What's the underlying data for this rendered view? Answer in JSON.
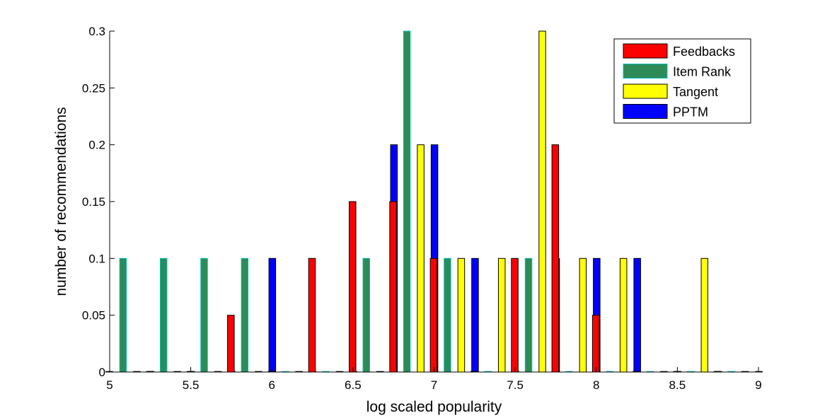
{
  "chart_data": {
    "type": "bar",
    "title": "",
    "xlabel": "log scaled popularity",
    "ylabel": "number of recommendations",
    "xlim": [
      5,
      9
    ],
    "ylim": [
      0,
      0.3
    ],
    "xticks": [
      "5",
      "5.5",
      "6",
      "6.5",
      "7",
      "7.5",
      "8",
      "8.5",
      "9"
    ],
    "yticks": [
      "0",
      "0.05",
      "0.1",
      "0.15",
      "0.2",
      "0.25",
      "0.3"
    ],
    "grid": false,
    "legend_position": "top-right",
    "bin_centers": [
      5.125,
      5.375,
      5.625,
      5.875,
      6.125,
      6.375,
      6.625,
      6.875,
      7.125,
      7.375,
      7.625,
      7.875,
      8.125,
      8.375,
      8.625,
      8.875
    ],
    "series": [
      {
        "name": "Feedbacks",
        "color": "#ff0000",
        "values": [
          0,
          0,
          0,
          0.05,
          0,
          0.1,
          0.15,
          0.15,
          0.1,
          0,
          0.1,
          0.2,
          0.05,
          0,
          0,
          0
        ]
      },
      {
        "name": "Item Rank",
        "color": "#2e8b57",
        "edge": "#00c0c0",
        "values": [
          0.1,
          0.1,
          0.1,
          0.1,
          0,
          0,
          0.1,
          0.3,
          0.1,
          0,
          0.1,
          0,
          0,
          0,
          0,
          0
        ]
      },
      {
        "name": "Tangent",
        "color": "#ffff00",
        "values": [
          0,
          0,
          0,
          0,
          0,
          0,
          0,
          0.2,
          0.1,
          0.1,
          0.3,
          0.1,
          0.1,
          0,
          0.1,
          0
        ]
      },
      {
        "name": "PPTM",
        "color": "#0000ff",
        "values": [
          0,
          0,
          0,
          0.1,
          0,
          0,
          0.2,
          0.2,
          0.1,
          0,
          0.1,
          0.1,
          0.1,
          0,
          0,
          0
        ]
      }
    ]
  }
}
